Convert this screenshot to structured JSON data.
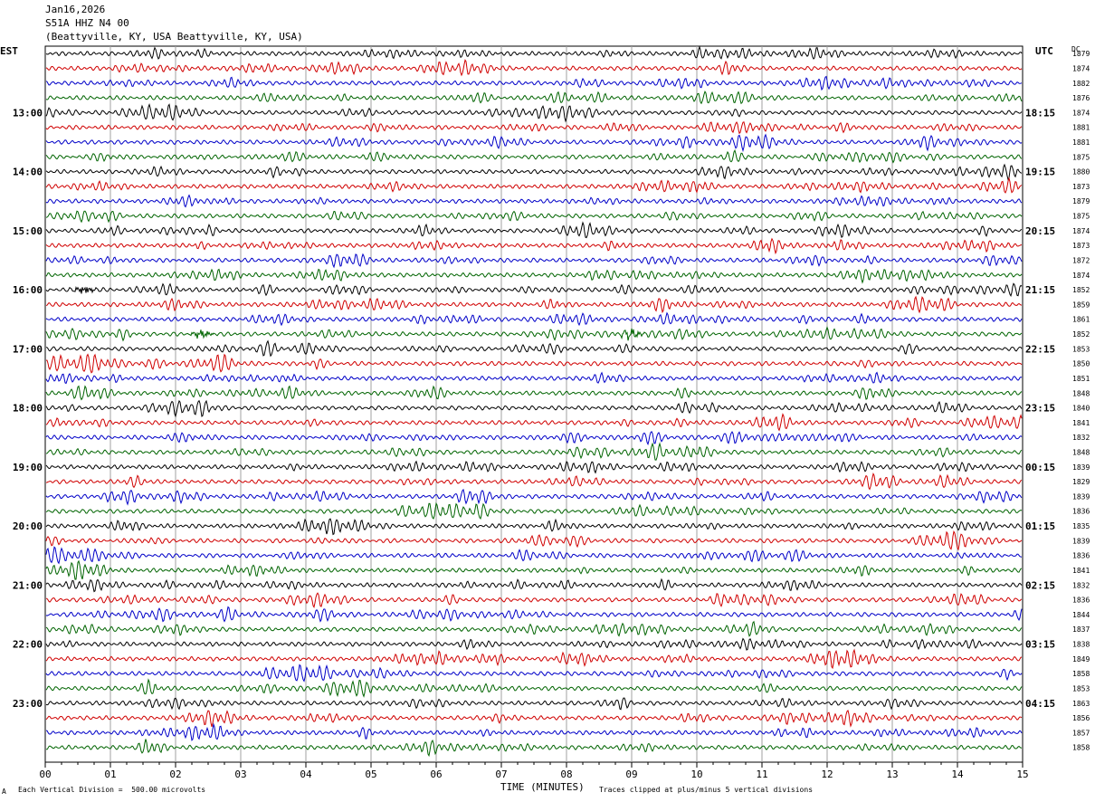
{
  "header": {
    "date": "Jan16,2026",
    "channel": "S51A HHZ N4 00",
    "location": "(Beattyville, KY, USA Beattyville, KY, USA)"
  },
  "left_tz": "EST",
  "right_tz": "UTC",
  "dc_label": "DC",
  "footer": {
    "scale_note": "Each Vertical Division =  500.00 microvolts",
    "clip_note": "Traces clipped at plus/minus 5 vertical divisions",
    "corner_mark": "A"
  },
  "chart_data": {
    "type": "line",
    "xlabel": "TIME (MINUTES)",
    "xlim": [
      0,
      15
    ],
    "x_ticks": [
      "00",
      "01",
      "02",
      "03",
      "04",
      "05",
      "06",
      "07",
      "08",
      "09",
      "10",
      "11",
      "12",
      "13",
      "14",
      "15"
    ],
    "left_hour_labels": [
      "13:00",
      "14:00",
      "15:00",
      "16:00",
      "17:00",
      "18:00",
      "19:00",
      "20:00",
      "21:00",
      "22:00",
      "23:00"
    ],
    "right_hour_labels": [
      "18:15",
      "19:15",
      "20:15",
      "21:15",
      "22:15",
      "23:15",
      "00:15",
      "01:15",
      "02:15",
      "03:15",
      "04:15"
    ],
    "trace_colors": [
      "#000000",
      "#d00000",
      "#0000c8",
      "#006400"
    ],
    "dc_offsets": [
      1879,
      1874,
      1882,
      1876,
      1874,
      1881,
      1881,
      1875,
      1880,
      1873,
      1879,
      1875,
      1874,
      1873,
      1872,
      1874,
      1852,
      1859,
      1861,
      1852,
      1853,
      1850,
      1851,
      1848,
      1840,
      1841,
      1832,
      1848,
      1839,
      1829,
      1839,
      1836,
      1835,
      1839,
      1836,
      1841,
      1832,
      1836,
      1844,
      1837,
      1838,
      1849,
      1858,
      1853,
      1863,
      1856,
      1857,
      1858
    ],
    "events": [
      {
        "trace": 16,
        "minute": 0.6,
        "label": ""
      },
      {
        "trace": 19,
        "minute": 2.4,
        "label": ""
      },
      {
        "trace": 19,
        "minute": 9.0,
        "label": ""
      }
    ]
  }
}
